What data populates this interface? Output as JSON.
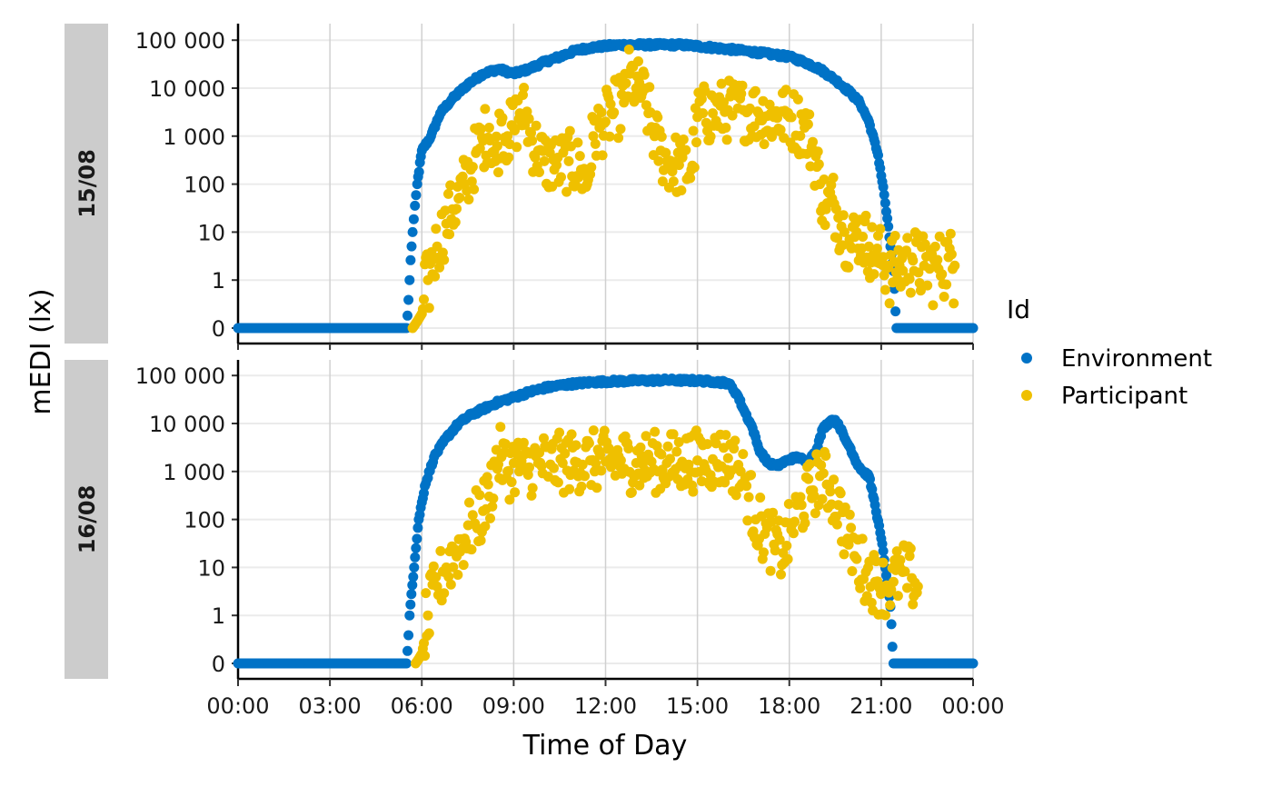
{
  "chart_data": {
    "type": "scatter",
    "xlabel": "Time of Day",
    "ylabel": "mEDI (lx)",
    "x_ticks": [
      "00:00",
      "03:00",
      "06:00",
      "09:00",
      "12:00",
      "15:00",
      "18:00",
      "21:00",
      "00:00"
    ],
    "x_range_hours": [
      0,
      24
    ],
    "y_scale": "symlog",
    "y_ticks": [
      "0",
      "1",
      "10",
      "100",
      "1 000",
      "10 000",
      "100 000"
    ],
    "y_range": [
      0,
      100000
    ],
    "grid": true,
    "legend": {
      "title": "Id",
      "position": "right",
      "entries": [
        {
          "name": "Environment",
          "color": "#0072c6"
        },
        {
          "name": "Participant",
          "color": "#efc000"
        }
      ]
    },
    "facets": [
      {
        "label": "15/08",
        "series": [
          {
            "name": "Environment",
            "color": "#0072c6",
            "points": [
              [
                0,
                0
              ],
              [
                2,
                0
              ],
              [
                4,
                0
              ],
              [
                5.5,
                0
              ],
              [
                5.6,
                1
              ],
              [
                5.7,
                10
              ],
              [
                5.85,
                100
              ],
              [
                6,
                500
              ],
              [
                6.3,
                1000
              ],
              [
                6.6,
                3000
              ],
              [
                7,
                6000
              ],
              [
                7.5,
                12000
              ],
              [
                8,
                20000
              ],
              [
                8.5,
                25000
              ],
              [
                9,
                20000
              ],
              [
                9.5,
                25000
              ],
              [
                10,
                35000
              ],
              [
                10.5,
                45000
              ],
              [
                11,
                60000
              ],
              [
                11.5,
                70000
              ],
              [
                12,
                75000
              ],
              [
                12.5,
                80000
              ],
              [
                13,
                80000
              ],
              [
                13.5,
                80000
              ],
              [
                14,
                80000
              ],
              [
                14.5,
                80000
              ],
              [
                15,
                75000
              ],
              [
                15.5,
                70000
              ],
              [
                16,
                65000
              ],
              [
                16.5,
                60000
              ],
              [
                17,
                55000
              ],
              [
                17.5,
                50000
              ],
              [
                18,
                45000
              ],
              [
                18.5,
                35000
              ],
              [
                19,
                25000
              ],
              [
                19.5,
                15000
              ],
              [
                20,
                8000
              ],
              [
                20.3,
                5000
              ],
              [
                20.6,
                2000
              ],
              [
                20.9,
                400
              ],
              [
                21.1,
                60
              ],
              [
                21.3,
                5
              ],
              [
                21.5,
                0
              ],
              [
                22,
                0
              ],
              [
                23,
                0
              ],
              [
                24,
                0
              ]
            ]
          },
          {
            "name": "Participant",
            "color": "#efc000",
            "points": [
              [
                5.7,
                0
              ],
              [
                6,
                0.3
              ],
              [
                6.2,
                1
              ],
              [
                6.5,
                5
              ],
              [
                6.8,
                15
              ],
              [
                7,
                30
              ],
              [
                7.2,
                50
              ],
              [
                7.4,
                100
              ],
              [
                7.6,
                200
              ],
              [
                7.8,
                500
              ],
              [
                8,
                800
              ],
              [
                8.2,
                1500
              ],
              [
                8.4,
                300
              ],
              [
                8.6,
                2000
              ],
              [
                8.8,
                1000
              ],
              [
                9,
                1500
              ],
              [
                9.2,
                3000
              ],
              [
                9.4,
                3000
              ],
              [
                9.6,
                800
              ],
              [
                9.8,
                500
              ],
              [
                10,
                300
              ],
              [
                10.4,
                250
              ],
              [
                10.8,
                300
              ],
              [
                11.2,
                200
              ],
              [
                11.4,
                100
              ],
              [
                11.6,
                1000
              ],
              [
                11.8,
                1500
              ],
              [
                12,
                2000
              ],
              [
                12.2,
                3000
              ],
              [
                12.6,
                5000
              ],
              [
                12.8,
                20000
              ],
              [
                13,
                10000
              ],
              [
                13.2,
                8000
              ],
              [
                13.4,
                3000
              ],
              [
                13.6,
                1000
              ],
              [
                13.8,
                500
              ],
              [
                14,
                300
              ],
              [
                14.4,
                250
              ],
              [
                14.8,
                200
              ],
              [
                15,
                2500
              ],
              [
                15.5,
                3000
              ],
              [
                16,
                3500
              ],
              [
                16.5,
                3500
              ],
              [
                17,
                3000
              ],
              [
                17.5,
                2500
              ],
              [
                18,
                2500
              ],
              [
                18.5,
                1500
              ],
              [
                18.8,
                500
              ],
              [
                19,
                100
              ],
              [
                19.2,
                30
              ],
              [
                19.4,
                50
              ],
              [
                19.6,
                20
              ],
              [
                19.8,
                10
              ],
              [
                20,
                5
              ],
              [
                20.2,
                10
              ],
              [
                20.4,
                8
              ],
              [
                20.6,
                5
              ],
              [
                20.8,
                3
              ],
              [
                21,
                3
              ],
              [
                21.2,
                2
              ],
              [
                21.6,
                2
              ],
              [
                22,
                3
              ],
              [
                22.4,
                2
              ],
              [
                22.8,
                2
              ],
              [
                23.2,
                3
              ],
              [
                23.4,
                2
              ]
            ]
          }
        ]
      },
      {
        "label": "16/08",
        "series": [
          {
            "name": "Environment",
            "color": "#0072c6",
            "points": [
              [
                0,
                0
              ],
              [
                2,
                0
              ],
              [
                4,
                0
              ],
              [
                5.5,
                0
              ],
              [
                5.6,
                1
              ],
              [
                5.75,
                10
              ],
              [
                5.9,
                100
              ],
              [
                6.1,
                500
              ],
              [
                6.4,
                2000
              ],
              [
                6.8,
                5000
              ],
              [
                7.2,
                10000
              ],
              [
                7.6,
                15000
              ],
              [
                8,
                20000
              ],
              [
                8.5,
                28000
              ],
              [
                9,
                35000
              ],
              [
                9.5,
                45000
              ],
              [
                10,
                55000
              ],
              [
                10.5,
                62000
              ],
              [
                11,
                68000
              ],
              [
                11.5,
                72000
              ],
              [
                12,
                75000
              ],
              [
                13,
                78000
              ],
              [
                14,
                80000
              ],
              [
                15,
                78000
              ],
              [
                15.5,
                75000
              ],
              [
                16,
                70000
              ],
              [
                16.3,
                40000
              ],
              [
                16.5,
                20000
              ],
              [
                16.8,
                8000
              ],
              [
                17,
                3000
              ],
              [
                17.3,
                1500
              ],
              [
                17.6,
                1300
              ],
              [
                18,
                1800
              ],
              [
                18.3,
                2000
              ],
              [
                18.6,
                1500
              ],
              [
                18.9,
                3000
              ],
              [
                19.1,
                8000
              ],
              [
                19.4,
                12000
              ],
              [
                19.6,
                10000
              ],
              [
                19.8,
                5000
              ],
              [
                20,
                3000
              ],
              [
                20.2,
                1500
              ],
              [
                20.4,
                1000
              ],
              [
                20.6,
                800
              ],
              [
                20.8,
                200
              ],
              [
                21,
                40
              ],
              [
                21.2,
                5
              ],
              [
                21.4,
                0
              ],
              [
                22,
                0
              ],
              [
                23,
                0
              ],
              [
                24,
                0
              ]
            ]
          },
          {
            "name": "Participant",
            "color": "#efc000",
            "points": [
              [
                5.8,
                0
              ],
              [
                6,
                0.2
              ],
              [
                6.2,
                1
              ],
              [
                6.5,
                4
              ],
              [
                6.8,
                10
              ],
              [
                7.1,
                20
              ],
              [
                7.4,
                40
              ],
              [
                7.7,
                80
              ],
              [
                8,
                150
              ],
              [
                8.2,
                300
              ],
              [
                8.4,
                1500
              ],
              [
                8.6,
                2000
              ],
              [
                8.8,
                1000
              ],
              [
                9,
                1500
              ],
              [
                9.4,
                1200
              ],
              [
                9.8,
                1500
              ],
              [
                10.2,
                1400
              ],
              [
                10.6,
                1500
              ],
              [
                11,
                1600
              ],
              [
                11.5,
                1700
              ],
              [
                12,
                1600
              ],
              [
                12.5,
                1700
              ],
              [
                13,
                1500
              ],
              [
                13.5,
                1600
              ],
              [
                14,
                1500
              ],
              [
                14.5,
                1600
              ],
              [
                15,
                1700
              ],
              [
                15.5,
                1800
              ],
              [
                16,
                1900
              ],
              [
                16.3,
                1200
              ],
              [
                16.6,
                500
              ],
              [
                16.9,
                100
              ],
              [
                17.2,
                50
              ],
              [
                17.5,
                30
              ],
              [
                17.8,
                20
              ],
              [
                18.1,
                80
              ],
              [
                18.4,
                200
              ],
              [
                18.7,
                400
              ],
              [
                19,
                800
              ],
              [
                19.3,
                500
              ],
              [
                19.6,
                200
              ],
              [
                19.9,
                40
              ],
              [
                20.2,
                15
              ],
              [
                20.5,
                8
              ],
              [
                20.8,
                5
              ],
              [
                21.1,
                4
              ],
              [
                21.4,
                5
              ],
              [
                21.7,
                8
              ],
              [
                22,
                6
              ],
              [
                22.2,
                4
              ]
            ]
          }
        ]
      }
    ]
  }
}
